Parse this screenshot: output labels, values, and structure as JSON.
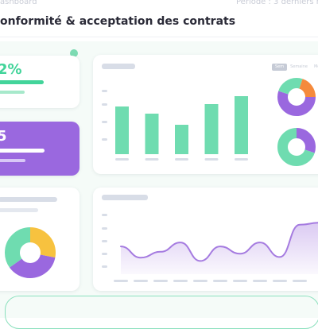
{
  "header": {
    "breadcrumb": "ashboard",
    "period": "Période : 3 derniers mo",
    "title": "onformité & acceptation des contrats"
  },
  "kpis": [
    {
      "value": "2%"
    },
    {
      "value": "5"
    }
  ],
  "period_toggle": {
    "options": [
      "Sem",
      "Semaine",
      "Mois"
    ],
    "selected": "Sem"
  },
  "colors": {
    "green": "#6fdcb0",
    "purple": "#9a68df",
    "orange": "#f58a3c",
    "yellow": "#f7c23f",
    "line": "#a57be0"
  },
  "charts": [
    {
      "type": "bar",
      "categories": [
        "",
        "",
        "",
        "",
        ""
      ],
      "values": [
        60,
        51,
        37,
        63,
        73
      ],
      "ylim": [
        0,
        100
      ],
      "grid": false
    },
    {
      "type": "pie",
      "style": "donut",
      "slices": [
        {
          "value": 55,
          "color": "#9a68df"
        },
        {
          "value": 25,
          "color": "#6fdcb0"
        },
        {
          "value": 20,
          "color": "#f58a3c"
        }
      ]
    },
    {
      "type": "pie",
      "style": "donut",
      "slices": [
        {
          "value": 30,
          "color": "#9a68df"
        },
        {
          "value": 70,
          "color": "#6fdcb0"
        }
      ]
    },
    {
      "type": "pie",
      "style": "donut",
      "slices": [
        {
          "value": 28,
          "color": "#f7c23f"
        },
        {
          "value": 37,
          "color": "#9a68df"
        },
        {
          "value": 35,
          "color": "#6fdcb0"
        }
      ]
    },
    {
      "type": "area",
      "x": [
        0,
        1,
        2,
        3,
        4,
        5,
        6,
        7,
        8,
        9,
        10
      ],
      "values": [
        42,
        25,
        34,
        48,
        20,
        42,
        31,
        48,
        26,
        75,
        78
      ],
      "ylim": [
        0,
        100
      ]
    }
  ]
}
